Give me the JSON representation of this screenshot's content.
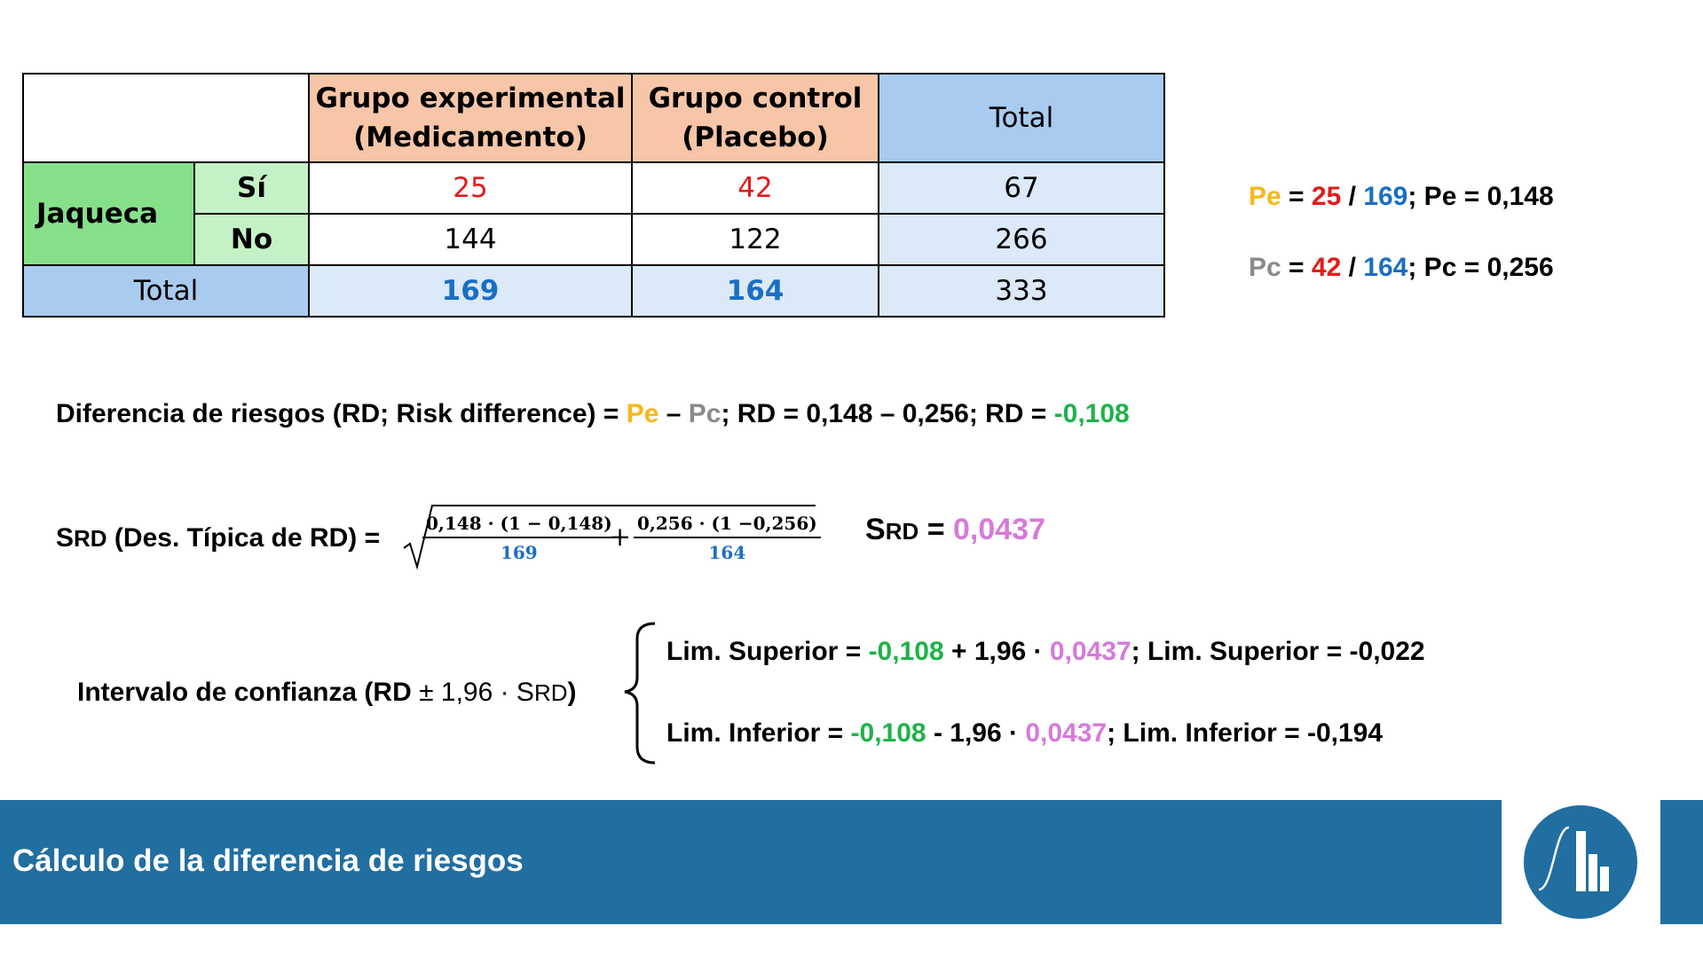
{
  "table": {
    "header": {
      "experimental_line1": "Grupo experimental",
      "experimental_line2": "(Medicamento)",
      "control_line1": "Grupo control",
      "control_line2": "(Placebo)",
      "total": "Total"
    },
    "row_label": "Jaqueca",
    "rows": [
      {
        "label": "Sí",
        "experimental": "25",
        "control": "42",
        "total": "67"
      },
      {
        "label": "No",
        "experimental": "144",
        "control": "122",
        "total": "266"
      }
    ],
    "totals": {
      "label": "Total",
      "experimental": "169",
      "control": "164",
      "total": "333"
    }
  },
  "proportions": {
    "pe": {
      "symbol": "Pe",
      "eq": " = ",
      "num": "25",
      "slash": " / ",
      "den": "169",
      "result": "; Pe = 0,148"
    },
    "pc": {
      "symbol": "Pc",
      "eq": " = ",
      "num": "42",
      "slash": " / ",
      "den": "164",
      "result": "; Pc = 0,256"
    }
  },
  "risk_difference": {
    "prefix": "Diferencia de riesgos (RD; Risk difference) = ",
    "pe": "Pe",
    "minus": " – ",
    "pc": "Pc",
    "middle": "; RD = 0,148 – 0,256; RD = ",
    "value": "-0,108"
  },
  "srd": {
    "s": "S",
    "rd": "RD",
    "label": " (Des. Típica de RD) = ",
    "frac1_num": "0,148 · (1 − 0,148)",
    "frac1_den": "169",
    "plus": "+",
    "frac2_num": "0,256 · (1 −0,256)",
    "frac2_den": "164",
    "result_s": "S",
    "result_rd": "RD",
    "result_eq": " = ",
    "result_value": "0,0437"
  },
  "interval": {
    "label_prefix": "Intervalo de confianza (RD ",
    "label_pm": "± 1,96 · S",
    "label_rd": "RD",
    "label_suffix": ")",
    "upper": {
      "prefix": "Lim. Superior = ",
      "rd": "-0,108",
      "op": " + 1,96 · ",
      "s": "0,0437",
      "result": "; Lim. Superior = -0,022"
    },
    "lower": {
      "prefix": "Lim. Inferior = ",
      "rd": "-0,108",
      "op": " - 1,96 · ",
      "s": "0,0437",
      "result": "; Lim. Inferior = -0,194"
    }
  },
  "footer": {
    "title": "Cálculo de la diferencia de riesgos",
    "logo_icon": "normal-curve-histogram-icon"
  },
  "colors": {
    "footer_bg": "#216ea1",
    "header_exp": "#f7c6a8",
    "header_total": "#a9cbef",
    "jaqueca": "#86e08a"
  }
}
